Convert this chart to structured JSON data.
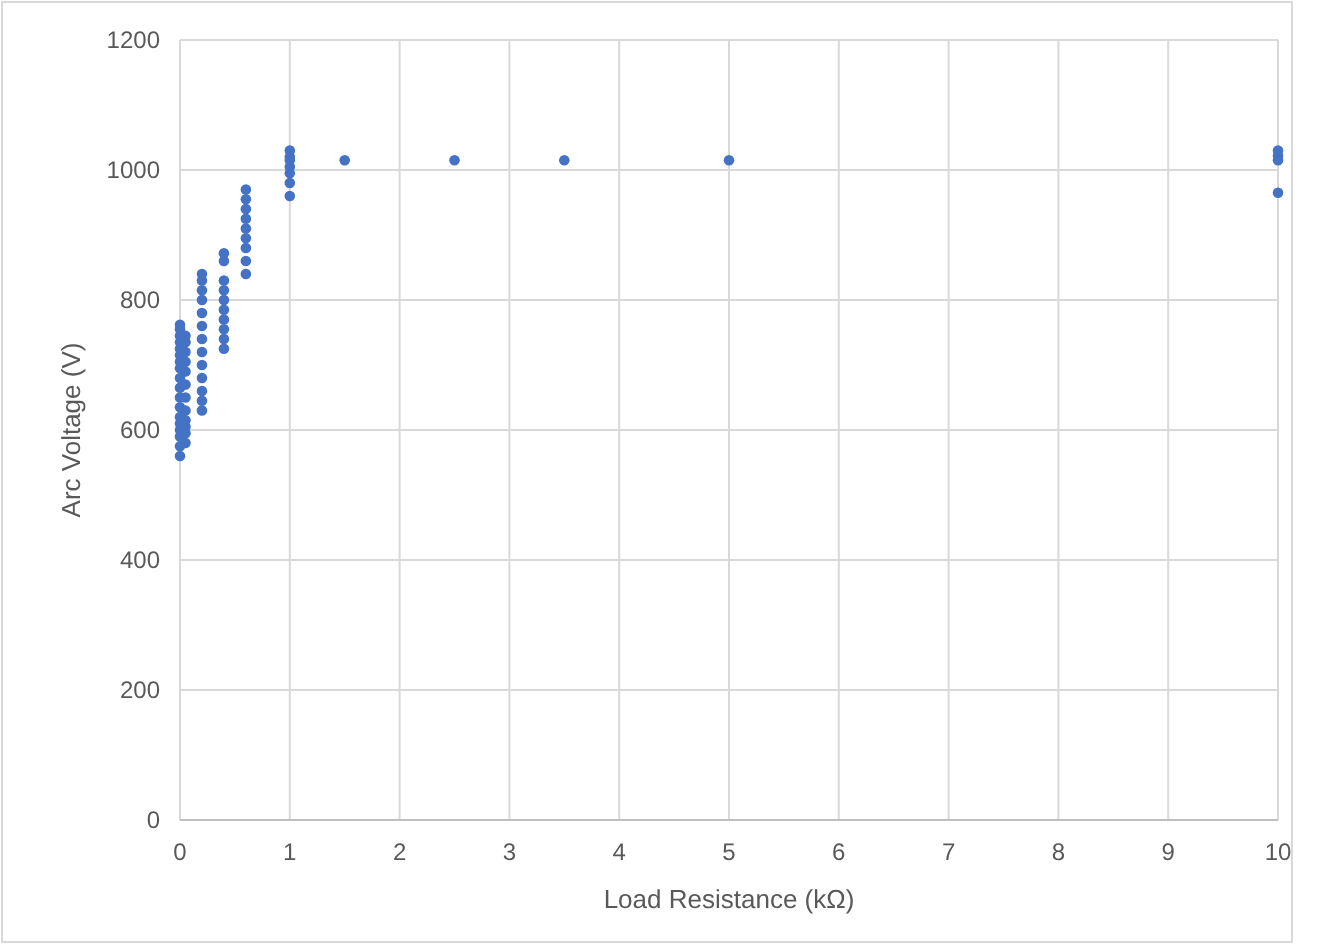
{
  "chart_data": {
    "type": "scatter",
    "xlabel": "Load Resistance (kΩ)",
    "ylabel": "Arc Voltage (V)",
    "xlim": [
      0,
      10
    ],
    "xticks": [
      0,
      1,
      2,
      3,
      4,
      5,
      6,
      7,
      8,
      9,
      10
    ],
    "ylim": [
      0,
      1200
    ],
    "yticks": [
      0,
      200,
      400,
      600,
      800,
      1000,
      1200
    ],
    "grid": true,
    "marker": "circle",
    "series": [
      {
        "color": "#4472c4",
        "x": [
          0,
          0,
          0,
          0,
          0,
          0,
          0,
          0,
          0,
          0,
          0,
          0,
          0,
          0,
          0,
          0,
          0,
          0,
          0.05,
          0.05,
          0.05,
          0.05,
          0.05,
          0.05,
          0.05,
          0.05,
          0.05,
          0.05,
          0.05,
          0.05,
          0.2,
          0.2,
          0.2,
          0.2,
          0.2,
          0.2,
          0.2,
          0.2,
          0.2,
          0.2,
          0.2,
          0.2,
          0.2,
          0.4,
          0.4,
          0.4,
          0.4,
          0.4,
          0.4,
          0.4,
          0.4,
          0.4,
          0.4,
          0.6,
          0.6,
          0.6,
          0.6,
          0.6,
          0.6,
          0.6,
          0.6,
          0.6,
          1,
          1,
          1,
          1,
          1,
          1,
          1,
          1.5,
          2.5,
          3.5,
          5,
          10,
          10,
          10,
          10
        ],
        "values": [
          560,
          575,
          590,
          600,
          610,
          620,
          635,
          650,
          665,
          680,
          695,
          705,
          715,
          725,
          735,
          745,
          755,
          762,
          580,
          595,
          605,
          615,
          630,
          650,
          670,
          690,
          705,
          720,
          735,
          745,
          630,
          645,
          660,
          680,
          700,
          720,
          740,
          760,
          780,
          800,
          815,
          830,
          840,
          725,
          740,
          755,
          770,
          785,
          800,
          815,
          830,
          860,
          872,
          840,
          860,
          880,
          895,
          910,
          925,
          940,
          955,
          970,
          960,
          980,
          995,
          1005,
          1015,
          1020,
          1030,
          1015,
          1015,
          1015,
          1015,
          965,
          1015,
          1022,
          1030
        ]
      }
    ]
  }
}
